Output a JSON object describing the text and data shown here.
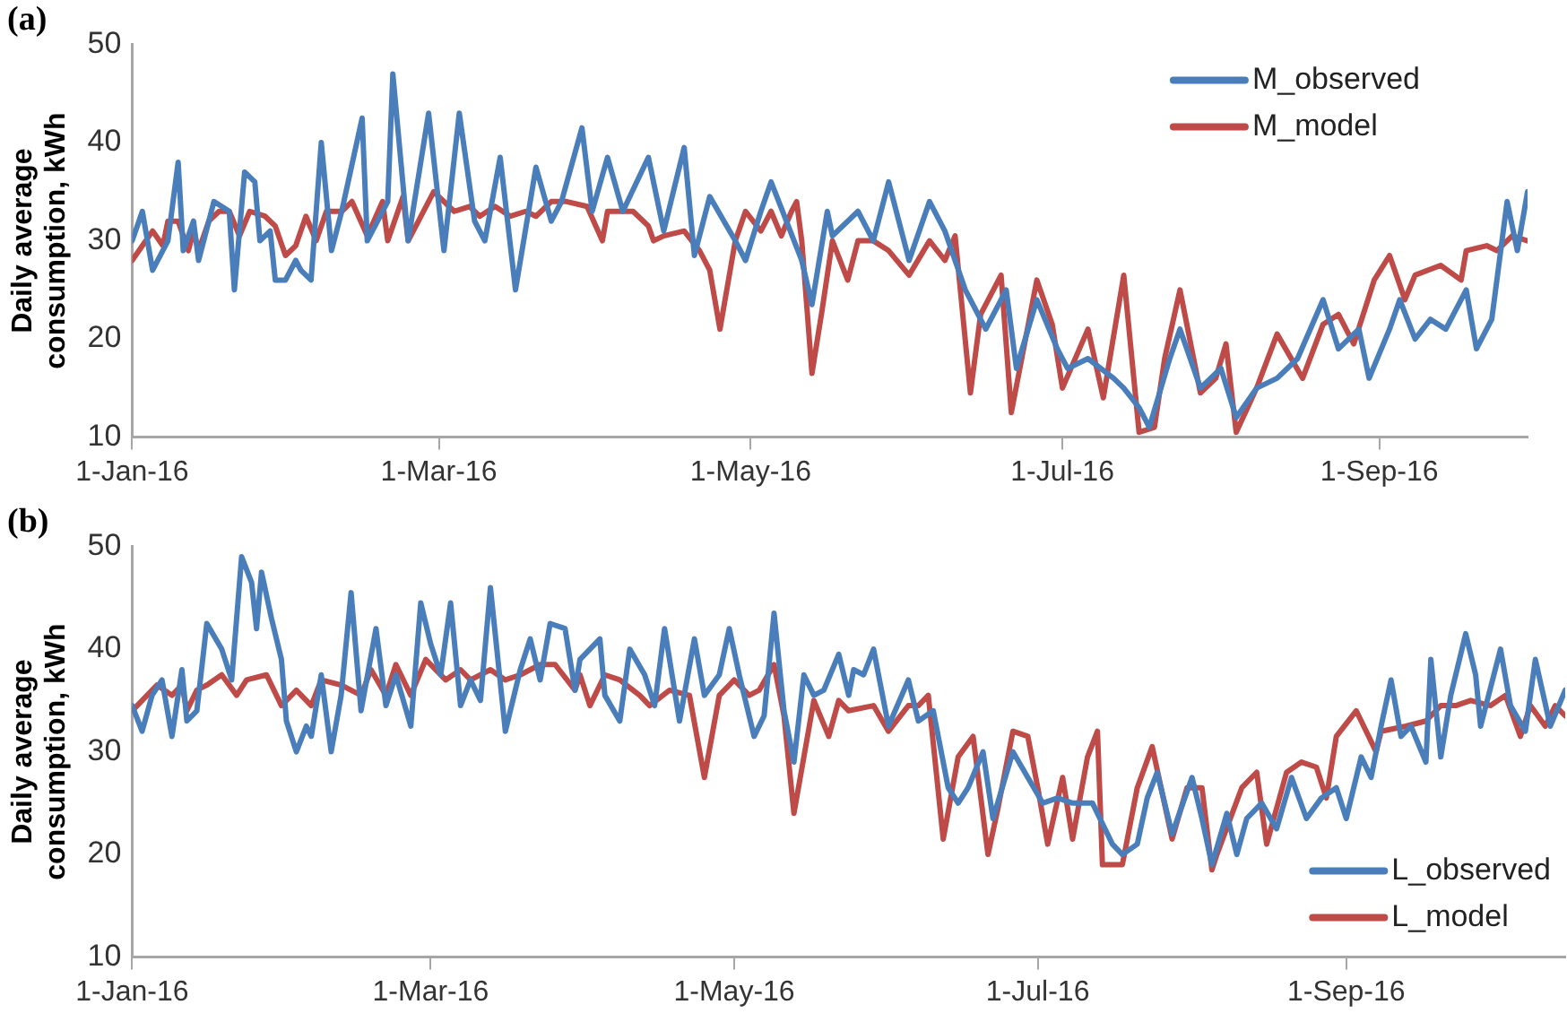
{
  "chart_data": [
    {
      "type": "line",
      "title": "(a)",
      "ylabel": "Daily average consumption, kWh",
      "xlim": [
        "2016-01-01",
        "2016-09-30"
      ],
      "xticks": [
        {
          "value": "2016-01-01",
          "label": "1-Jan-16"
        },
        {
          "value": "2016-03-01",
          "label": "1-Mar-16"
        },
        {
          "value": "2016-05-01",
          "label": "1-May-16"
        },
        {
          "value": "2016-07-01",
          "label": "1-Jul-16"
        },
        {
          "value": "2016-09-01",
          "label": "1-Sep-16"
        }
      ],
      "ylim": [
        10,
        50
      ],
      "yticks": [
        10,
        20,
        30,
        40,
        50
      ],
      "grid": false,
      "legend": "top right",
      "marker": "none",
      "line_style": "solid",
      "series": [
        {
          "name": "M_observed",
          "color": "#4a7ebb",
          "x": [
            "2016-01-01",
            "2016-01-03",
            "2016-01-05",
            "2016-01-08",
            "2016-01-10",
            "2016-01-11",
            "2016-01-13",
            "2016-01-14",
            "2016-01-17",
            "2016-01-20",
            "2016-01-21",
            "2016-01-23",
            "2016-01-25",
            "2016-01-26",
            "2016-01-28",
            "2016-01-29",
            "2016-01-31",
            "2016-02-02",
            "2016-02-03",
            "2016-02-05",
            "2016-02-07",
            "2016-02-09",
            "2016-02-11",
            "2016-02-15",
            "2016-02-16",
            "2016-02-20",
            "2016-02-21",
            "2016-02-24",
            "2016-02-28",
            "2016-03-02",
            "2016-03-05",
            "2016-03-08",
            "2016-03-10",
            "2016-03-13",
            "2016-03-16",
            "2016-03-20",
            "2016-03-23",
            "2016-03-25",
            "2016-03-29",
            "2016-03-31",
            "2016-04-03",
            "2016-04-06",
            "2016-04-11",
            "2016-04-14",
            "2016-04-18",
            "2016-04-20",
            "2016-04-23",
            "2016-04-28",
            "2016-04-30",
            "2016-05-03",
            "2016-05-05",
            "2016-05-08",
            "2016-05-11",
            "2016-05-13",
            "2016-05-16",
            "2016-05-17",
            "2016-05-22",
            "2016-05-25",
            "2016-05-28",
            "2016-06-01",
            "2016-06-05",
            "2016-06-08",
            "2016-06-12",
            "2016-06-16",
            "2016-06-20",
            "2016-06-22",
            "2016-06-26",
            "2016-06-30",
            "2016-07-02",
            "2016-07-06",
            "2016-07-11",
            "2016-07-13",
            "2016-07-16",
            "2016-07-18",
            "2016-07-22",
            "2016-07-24",
            "2016-07-28",
            "2016-08-01",
            "2016-08-04",
            "2016-08-08",
            "2016-08-12",
            "2016-08-16",
            "2016-08-21",
            "2016-08-24",
            "2016-08-28",
            "2016-08-30",
            "2016-09-03",
            "2016-09-05",
            "2016-09-08",
            "2016-09-11",
            "2016-09-14",
            "2016-09-18",
            "2016-09-20",
            "2016-09-23",
            "2016-09-26",
            "2016-09-28",
            "2016-09-30"
          ],
          "values": [
            30,
            33,
            27,
            30,
            38,
            29,
            32,
            28,
            34,
            33,
            25,
            37,
            36,
            30,
            31,
            26,
            26,
            28,
            27,
            26,
            40,
            29,
            33,
            42.5,
            30,
            34,
            47,
            30,
            43,
            29,
            43,
            32,
            30,
            38.5,
            25,
            37.5,
            32,
            34,
            41.5,
            33,
            38.5,
            33,
            38.5,
            31,
            39.5,
            28.5,
            34.5,
            30,
            28,
            33,
            36,
            32,
            28,
            23.5,
            33,
            30.5,
            33,
            30,
            36,
            28,
            34,
            31,
            25,
            21,
            25,
            17,
            24,
            19,
            17,
            18,
            16,
            15,
            13,
            11,
            18,
            21,
            15,
            17,
            12,
            15,
            16,
            18,
            24,
            19,
            21,
            16,
            21,
            24,
            20,
            22,
            21,
            25,
            19,
            22,
            34,
            29,
            35
          ]
        },
        {
          "name": "M_model",
          "color": "#be4b48",
          "x": [
            "2016-01-01",
            "2016-01-05",
            "2016-01-07",
            "2016-01-08",
            "2016-01-10",
            "2016-01-12",
            "2016-01-13",
            "2016-01-14",
            "2016-01-16",
            "2016-01-18",
            "2016-01-20",
            "2016-01-22",
            "2016-01-24",
            "2016-01-27",
            "2016-01-29",
            "2016-01-31",
            "2016-02-02",
            "2016-02-04",
            "2016-02-06",
            "2016-02-08",
            "2016-02-11",
            "2016-02-13",
            "2016-02-16",
            "2016-02-19",
            "2016-02-20",
            "2016-02-23",
            "2016-02-24",
            "2016-02-29",
            "2016-03-04",
            "2016-03-07",
            "2016-03-09",
            "2016-03-12",
            "2016-03-15",
            "2016-03-18",
            "2016-03-20",
            "2016-03-23",
            "2016-03-26",
            "2016-03-30",
            "2016-04-02",
            "2016-04-03",
            "2016-04-08",
            "2016-04-11",
            "2016-04-12",
            "2016-04-14",
            "2016-04-18",
            "2016-04-21",
            "2016-04-23",
            "2016-04-25",
            "2016-04-28",
            "2016-04-30",
            "2016-05-03",
            "2016-05-05",
            "2016-05-07",
            "2016-05-09",
            "2016-05-10",
            "2016-05-11",
            "2016-05-13",
            "2016-05-15",
            "2016-05-17",
            "2016-05-20",
            "2016-05-22",
            "2016-05-25",
            "2016-05-28",
            "2016-06-01",
            "2016-06-05",
            "2016-06-08",
            "2016-06-10",
            "2016-06-13",
            "2016-06-15",
            "2016-06-19",
            "2016-06-21",
            "2016-06-26",
            "2016-06-29",
            "2016-07-01",
            "2016-07-06",
            "2016-07-09",
            "2016-07-13",
            "2016-07-16",
            "2016-07-19",
            "2016-07-21",
            "2016-07-24",
            "2016-07-28",
            "2016-07-31",
            "2016-08-02",
            "2016-08-04",
            "2016-08-08",
            "2016-08-12",
            "2016-08-17",
            "2016-08-21",
            "2016-08-24",
            "2016-08-27",
            "2016-08-31",
            "2016-09-03",
            "2016-09-06",
            "2016-09-08",
            "2016-09-13",
            "2016-09-17",
            "2016-09-18",
            "2016-09-22",
            "2016-09-24",
            "2016-09-27",
            "2016-09-30"
          ],
          "values": [
            28,
            31,
            29.5,
            32,
            32,
            29,
            31,
            29,
            32,
            33,
            33,
            30.5,
            33,
            32.5,
            31.5,
            28.5,
            29.5,
            32.5,
            30,
            33,
            33,
            34,
            30.5,
            34,
            30,
            34.5,
            30,
            35,
            33,
            33.5,
            32.5,
            33.5,
            32.5,
            33,
            32.5,
            34,
            34,
            33.5,
            30,
            33,
            33,
            31.5,
            30,
            30.5,
            31,
            29,
            27,
            21,
            30,
            33,
            31,
            33,
            30.5,
            33,
            34,
            30,
            16.5,
            23,
            30,
            26,
            30,
            30,
            29,
            26.5,
            30,
            28,
            30.5,
            14.5,
            22.5,
            26.5,
            12.5,
            26,
            21.5,
            15,
            21,
            14,
            26.5,
            10.5,
            11,
            18,
            25,
            14.5,
            16,
            19.5,
            10.5,
            15,
            20.5,
            16,
            21.5,
            22.5,
            19.5,
            26,
            28.5,
            24,
            26.5,
            27.5,
            26,
            29,
            29.5,
            29,
            30.5,
            30
          ]
        }
      ]
    },
    {
      "type": "line",
      "title": "(b)",
      "ylabel": "Daily average consumption, kWh",
      "xlim": [
        "2016-01-01",
        "2016-10-15"
      ],
      "xticks": [
        {
          "value": "2016-01-01",
          "label": "1-Jan-16"
        },
        {
          "value": "2016-03-01",
          "label": "1-Mar-16"
        },
        {
          "value": "2016-05-01",
          "label": "1-May-16"
        },
        {
          "value": "2016-07-01",
          "label": "1-Jul-16"
        },
        {
          "value": "2016-09-01",
          "label": "1-Sep-16"
        }
      ],
      "ylim": [
        10,
        50
      ],
      "yticks": [
        10,
        20,
        30,
        40,
        50
      ],
      "grid": false,
      "legend": "bottom right",
      "marker": "none",
      "line_style": "solid",
      "series": [
        {
          "name": "L_observed",
          "color": "#4a7ebb",
          "x": [
            "2016-01-01",
            "2016-01-03",
            "2016-01-05",
            "2016-01-07",
            "2016-01-09",
            "2016-01-11",
            "2016-01-12",
            "2016-01-14",
            "2016-01-16",
            "2016-01-19",
            "2016-01-21",
            "2016-01-23",
            "2016-01-25",
            "2016-01-26",
            "2016-01-27",
            "2016-01-29",
            "2016-01-31",
            "2016-02-01",
            "2016-02-03",
            "2016-02-05",
            "2016-02-06",
            "2016-02-08",
            "2016-02-10",
            "2016-02-12",
            "2016-02-14",
            "2016-02-16",
            "2016-02-19",
            "2016-02-21",
            "2016-02-23",
            "2016-02-26",
            "2016-02-28",
            "2016-03-01",
            "2016-03-03",
            "2016-03-05",
            "2016-03-07",
            "2016-03-09",
            "2016-03-11",
            "2016-03-13",
            "2016-03-16",
            "2016-03-19",
            "2016-03-21",
            "2016-03-23",
            "2016-03-25",
            "2016-03-28",
            "2016-03-30",
            "2016-03-31",
            "2016-04-04",
            "2016-04-05",
            "2016-04-08",
            "2016-04-10",
            "2016-04-13",
            "2016-04-15",
            "2016-04-17",
            "2016-04-20",
            "2016-04-23",
            "2016-04-25",
            "2016-04-28",
            "2016-04-30",
            "2016-05-02",
            "2016-05-05",
            "2016-05-07",
            "2016-05-09",
            "2016-05-11",
            "2016-05-13",
            "2016-05-15",
            "2016-05-17",
            "2016-05-19",
            "2016-05-22",
            "2016-05-24",
            "2016-05-25",
            "2016-05-27",
            "2016-05-29",
            "2016-06-01",
            "2016-06-05",
            "2016-06-07",
            "2016-06-10",
            "2016-06-13",
            "2016-06-15",
            "2016-06-17",
            "2016-06-20",
            "2016-06-22",
            "2016-06-26",
            "2016-06-29",
            "2016-07-02",
            "2016-07-05",
            "2016-07-08",
            "2016-07-12",
            "2016-07-16",
            "2016-07-18",
            "2016-07-21",
            "2016-07-23",
            "2016-07-25",
            "2016-07-28",
            "2016-08-01",
            "2016-08-03",
            "2016-08-05",
            "2016-08-08",
            "2016-08-10",
            "2016-08-12",
            "2016-08-15",
            "2016-08-18",
            "2016-08-21",
            "2016-08-24",
            "2016-08-27",
            "2016-08-30",
            "2016-09-01",
            "2016-09-04",
            "2016-09-06",
            "2016-09-08",
            "2016-09-10",
            "2016-09-12",
            "2016-09-14",
            "2016-09-17",
            "2016-09-18",
            "2016-09-20",
            "2016-09-22",
            "2016-09-25",
            "2016-09-27",
            "2016-09-28",
            "2016-10-02",
            "2016-10-04",
            "2016-10-07",
            "2016-10-09",
            "2016-10-12",
            "2016-10-15"
          ],
          "values": [
            34.5,
            32,
            35.5,
            37,
            31.5,
            38,
            33,
            34,
            42.5,
            40,
            37,
            49,
            46.5,
            42,
            47.5,
            43,
            39,
            33,
            30,
            32.5,
            31.5,
            37.5,
            30,
            35.5,
            45.5,
            34,
            42,
            34.5,
            37.5,
            32.5,
            44.5,
            40.5,
            37.5,
            44.5,
            34.5,
            37,
            35,
            46,
            32,
            38,
            41,
            37,
            42.5,
            42,
            36,
            39,
            41,
            35.5,
            33,
            40,
            37.5,
            34.5,
            42,
            33,
            41,
            35.5,
            37.5,
            42,
            37.5,
            31.5,
            33.5,
            43.5,
            34,
            29,
            37.5,
            35.5,
            36,
            39.5,
            35.5,
            38,
            37.5,
            40,
            32.5,
            37,
            33,
            34,
            26.5,
            25,
            26.5,
            30,
            23.5,
            30,
            27.5,
            25,
            25.5,
            25,
            25,
            21,
            20,
            21,
            25.5,
            28,
            22,
            27.5,
            23.5,
            19,
            24,
            20,
            23.5,
            25,
            22.5,
            27.5,
            23.5,
            25.5,
            26.5,
            23.5,
            29.5,
            27.5,
            32.5,
            37,
            31.5,
            32.5,
            29,
            39,
            29.5,
            35.5,
            41.5,
            37.5,
            32.5,
            40,
            34.5,
            32,
            39,
            32.5,
            36
          ]
        },
        {
          "name": "L_model",
          "color": "#be4b48",
          "x": [
            "2016-01-01",
            "2016-01-04",
            "2016-01-06",
            "2016-01-09",
            "2016-01-11",
            "2016-01-12",
            "2016-01-14",
            "2016-01-16",
            "2016-01-19",
            "2016-01-22",
            "2016-01-24",
            "2016-01-28",
            "2016-01-31",
            "2016-02-03",
            "2016-02-06",
            "2016-02-08",
            "2016-02-12",
            "2016-02-16",
            "2016-02-18",
            "2016-02-21",
            "2016-02-23",
            "2016-02-26",
            "2016-02-29",
            "2016-03-04",
            "2016-03-07",
            "2016-03-09",
            "2016-03-13",
            "2016-03-16",
            "2016-03-19",
            "2016-03-23",
            "2016-03-26",
            "2016-03-30",
            "2016-03-31",
            "2016-04-02",
            "2016-04-05",
            "2016-04-08",
            "2016-04-12",
            "2016-04-14",
            "2016-04-18",
            "2016-04-22",
            "2016-04-25",
            "2016-04-28",
            "2016-05-01",
            "2016-05-04",
            "2016-05-06",
            "2016-05-09",
            "2016-05-11",
            "2016-05-13",
            "2016-05-15",
            "2016-05-17",
            "2016-05-20",
            "2016-05-22",
            "2016-05-24",
            "2016-05-29",
            "2016-06-01",
            "2016-06-05",
            "2016-06-07",
            "2016-06-09",
            "2016-06-12",
            "2016-06-15",
            "2016-06-18",
            "2016-06-21",
            "2016-06-23",
            "2016-06-26",
            "2016-06-29",
            "2016-07-01",
            "2016-07-03",
            "2016-07-06",
            "2016-07-08",
            "2016-07-11",
            "2016-07-13",
            "2016-07-14",
            "2016-07-18",
            "2016-07-21",
            "2016-07-24",
            "2016-07-28",
            "2016-07-31",
            "2016-08-03",
            "2016-08-05",
            "2016-08-06",
            "2016-08-11",
            "2016-08-14",
            "2016-08-16",
            "2016-08-20",
            "2016-08-23",
            "2016-08-26",
            "2016-08-28",
            "2016-08-30",
            "2016-09-03",
            "2016-09-07",
            "2016-09-08",
            "2016-09-13",
            "2016-09-17",
            "2016-09-20",
            "2016-09-23",
            "2016-09-26",
            "2016-09-30",
            "2016-10-03",
            "2016-10-06",
            "2016-10-08",
            "2016-10-11",
            "2016-10-13",
            "2016-10-15"
          ],
          "values": [
            34,
            35.5,
            36.5,
            35.5,
            36.5,
            34,
            36,
            36.5,
            37.5,
            35.5,
            37,
            37.5,
            34.5,
            36,
            34.5,
            37,
            36.5,
            35.5,
            38,
            35.5,
            38.5,
            35.5,
            39,
            37,
            38,
            37,
            38,
            37,
            37.5,
            38.5,
            38.5,
            36,
            37.5,
            34.5,
            37.5,
            37,
            35.5,
            34.5,
            36,
            35.5,
            27.5,
            35.5,
            37,
            35.5,
            36,
            38.5,
            33.5,
            24,
            29.5,
            35,
            31.5,
            35,
            34,
            34.5,
            32,
            34.5,
            34.5,
            35.5,
            21.5,
            29.5,
            31.5,
            20,
            24.5,
            32,
            31.5,
            26.5,
            21,
            27.5,
            21.5,
            29.5,
            32,
            19,
            19,
            26.5,
            30.5,
            21.5,
            26.5,
            26.5,
            18.5,
            20,
            26.5,
            28,
            21,
            28,
            29,
            28.5,
            25.5,
            31.5,
            34,
            30,
            32,
            32.5,
            33,
            34.5,
            34.5,
            35,
            34.5,
            35.5,
            31.5,
            34.5,
            32.5,
            34.5,
            33.5
          ]
        }
      ]
    }
  ]
}
